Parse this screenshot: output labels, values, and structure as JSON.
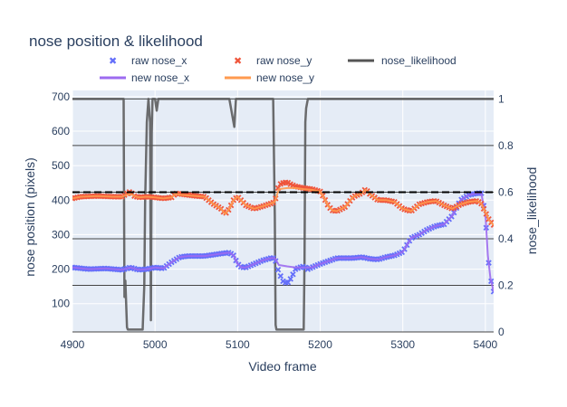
{
  "chart_data": {
    "type": "line",
    "title": "nose position & likelihood",
    "xlabel": "Video frame",
    "ylabel": "nose position (pixels)",
    "y2label": "nose_likelihood",
    "xlim": [
      4900,
      5410
    ],
    "ylim": [
      18,
      718
    ],
    "y2lim": [
      0,
      1.0365
    ],
    "xticks": [
      4900,
      5000,
      5100,
      5200,
      5300,
      5400
    ],
    "yticks": [
      100,
      200,
      300,
      400,
      500,
      600,
      700
    ],
    "y2ticks": [
      0,
      0.2,
      0.4,
      0.6,
      0.8,
      1
    ],
    "y2ticklabels": [
      "0",
      "0.2",
      "0.4",
      "0.6",
      "0.8",
      "1"
    ],
    "likelihood_threshold": 0.6,
    "legend": {
      "placement": "top",
      "row1": [
        "raw nose_x",
        "raw nose_y",
        "nose_likelihood"
      ],
      "row2": [
        "new nose_x",
        "new nose_y"
      ]
    },
    "colors": {
      "raw_x": "#636efa",
      "raw_y": "#ef553b",
      "new_x": "#9d6bf0",
      "new_y": "#ff9a4f",
      "likelihood": "#555555",
      "plot_bg": "#e5ecf6",
      "grid": "#ffffff",
      "reference": "#000000"
    },
    "series": [
      {
        "name": "nose_likelihood",
        "axis": "y2",
        "x": [
          4900,
          4928,
          4960,
          4962,
          4963,
          4964,
          4966,
          4967,
          4968,
          4980,
          4985,
          4987,
          4988,
          4990,
          4992,
          4994,
          4995,
          4996,
          4997,
          4998,
          5000,
          5002,
          5004,
          5006,
          5020,
          5060,
          5090,
          5096,
          5098,
          5100,
          5102,
          5140,
          5143,
          5145,
          5146,
          5147,
          5150,
          5160,
          5170,
          5175,
          5180,
          5181,
          5182,
          5183,
          5185,
          5188,
          5190,
          5230,
          5300,
          5360,
          5410
        ],
        "y": [
          1.0,
          1.0,
          1.0,
          1.0,
          0.15,
          0.22,
          0.02,
          0.01,
          0.01,
          0.01,
          0.01,
          0.2,
          0.55,
          0.9,
          1.0,
          0.9,
          0.05,
          0.85,
          1.0,
          1.0,
          1.0,
          0.95,
          1.0,
          1.0,
          1.0,
          1.0,
          1.0,
          0.88,
          1.0,
          1.0,
          1.0,
          1.0,
          1.0,
          0.5,
          0.03,
          0.01,
          0.01,
          0.01,
          0.01,
          0.01,
          0.01,
          0.3,
          0.9,
          0.96,
          1.0,
          1.0,
          1.0,
          1.0,
          1.0,
          1.0,
          1.0
        ]
      },
      {
        "name": "raw nose_x",
        "axis": "y",
        "x": [
          4900,
          4920,
          4940,
          4960,
          4970,
          4980,
          4990,
          5000,
          5010,
          5020,
          5030,
          5040,
          5060,
          5080,
          5090,
          5095,
          5100,
          5105,
          5110,
          5130,
          5140,
          5145,
          5150,
          5155,
          5160,
          5165,
          5170,
          5175,
          5180,
          5185,
          5190,
          5200,
          5220,
          5240,
          5250,
          5260,
          5270,
          5280,
          5290,
          5300,
          5310,
          5320,
          5330,
          5340,
          5350,
          5360,
          5370,
          5380,
          5390,
          5395,
          5400,
          5403,
          5406,
          5410
        ],
        "y": [
          205,
          200,
          202,
          198,
          205,
          198,
          200,
          205,
          202,
          220,
          235,
          238,
          238,
          245,
          248,
          240,
          215,
          205,
          205,
          225,
          232,
          232,
          190,
          165,
          158,
          175,
          200,
          205,
          208,
          200,
          205,
          215,
          232,
          232,
          235,
          230,
          228,
          235,
          240,
          250,
          290,
          300,
          315,
          325,
          330,
          355,
          400,
          415,
          420,
          420,
          360,
          240,
          175,
          135
        ]
      },
      {
        "name": "new nose_x",
        "axis": "y",
        "x": [
          4900,
          4920,
          4940,
          4960,
          4970,
          4980,
          4990,
          5000,
          5010,
          5020,
          5030,
          5040,
          5060,
          5080,
          5090,
          5095,
          5100,
          5105,
          5110,
          5130,
          5140,
          5145,
          5150,
          5160,
          5170,
          5180,
          5190,
          5200,
          5220,
          5240,
          5250,
          5260,
          5270,
          5280,
          5290,
          5300,
          5310,
          5320,
          5330,
          5340,
          5350,
          5360,
          5370,
          5380,
          5390,
          5395,
          5400,
          5403,
          5406,
          5410
        ],
        "y": [
          205,
          200,
          202,
          198,
          205,
          198,
          200,
          205,
          202,
          220,
          235,
          238,
          238,
          245,
          248,
          240,
          215,
          205,
          205,
          225,
          232,
          232,
          212,
          208,
          205,
          205,
          205,
          215,
          232,
          232,
          235,
          230,
          228,
          235,
          240,
          250,
          290,
          300,
          315,
          325,
          330,
          355,
          400,
          415,
          420,
          420,
          360,
          240,
          175,
          135
        ]
      },
      {
        "name": "raw nose_y",
        "axis": "y",
        "x": [
          4900,
          4910,
          4930,
          4950,
          4960,
          4965,
          4970,
          4975,
          4980,
          4990,
          5000,
          5010,
          5020,
          5025,
          5030,
          5040,
          5050,
          5060,
          5070,
          5080,
          5085,
          5090,
          5095,
          5100,
          5110,
          5120,
          5130,
          5140,
          5145,
          5150,
          5155,
          5160,
          5165,
          5170,
          5180,
          5190,
          5200,
          5205,
          5210,
          5215,
          5220,
          5230,
          5240,
          5250,
          5255,
          5260,
          5270,
          5280,
          5290,
          5300,
          5310,
          5320,
          5330,
          5340,
          5350,
          5360,
          5370,
          5380,
          5390,
          5395,
          5400,
          5405,
          5410
        ],
        "y": [
          405,
          410,
          412,
          410,
          410,
          418,
          425,
          412,
          408,
          410,
          408,
          405,
          408,
          420,
          418,
          415,
          412,
          410,
          390,
          375,
          360,
          375,
          400,
          410,
          385,
          375,
          382,
          390,
          395,
          445,
          450,
          452,
          445,
          440,
          435,
          432,
          425,
          405,
          382,
          370,
          368,
          380,
          410,
          420,
          432,
          418,
          400,
          400,
          395,
          375,
          368,
          388,
          395,
          398,
          385,
          375,
          388,
          395,
          398,
          390,
          365,
          340,
          328
        ]
      },
      {
        "name": "new nose_y",
        "axis": "y",
        "x": [
          4900,
          4910,
          4930,
          4950,
          4960,
          4965,
          4970,
          4975,
          4980,
          4990,
          5000,
          5010,
          5020,
          5025,
          5030,
          5040,
          5050,
          5060,
          5070,
          5080,
          5085,
          5090,
          5095,
          5100,
          5110,
          5120,
          5130,
          5140,
          5145,
          5150,
          5160,
          5170,
          5180,
          5190,
          5200,
          5205,
          5210,
          5215,
          5220,
          5230,
          5240,
          5250,
          5255,
          5260,
          5270,
          5280,
          5290,
          5300,
          5310,
          5320,
          5330,
          5340,
          5350,
          5360,
          5370,
          5380,
          5390,
          5395,
          5400,
          5405,
          5410
        ],
        "y": [
          405,
          410,
          412,
          410,
          410,
          415,
          418,
          412,
          408,
          410,
          408,
          405,
          408,
          418,
          416,
          414,
          412,
          410,
          390,
          375,
          360,
          375,
          400,
          410,
          385,
          375,
          382,
          390,
          395,
          432,
          435,
          435,
          432,
          430,
          425,
          405,
          382,
          370,
          368,
          380,
          410,
          420,
          430,
          418,
          400,
          400,
          395,
          375,
          368,
          388,
          395,
          398,
          385,
          375,
          388,
          395,
          398,
          390,
          365,
          340,
          328
        ]
      }
    ]
  }
}
